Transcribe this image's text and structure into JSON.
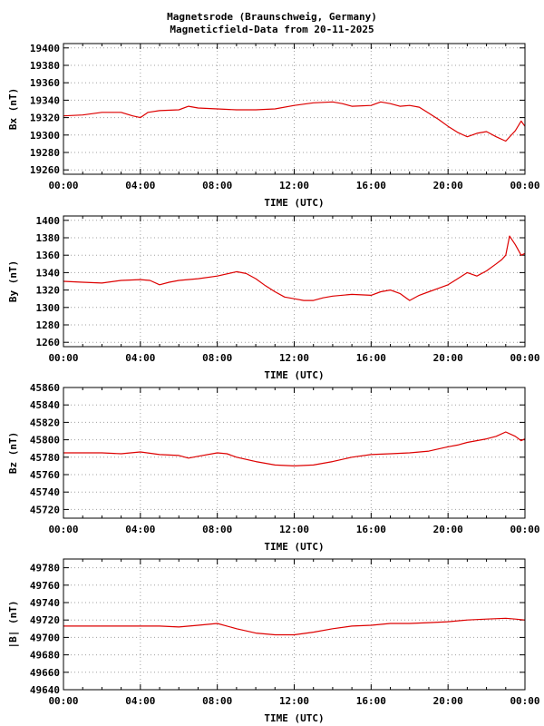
{
  "page": {
    "title_line1": "Magnetsrode (Braunschweig, Germany)",
    "title_line2": "Magneticfield-Data from 20-11-2025"
  },
  "colors": {
    "series": "#dd0000",
    "grid": "#a0a0a0",
    "axis": "#000000",
    "background": "#ffffff"
  },
  "chart_data": [
    {
      "type": "line",
      "ylabel": "Bx (nT)",
      "xlabel": "TIME (UTC)",
      "xlim": [
        0,
        24
      ],
      "xticks": [
        "00:00",
        "04:00",
        "08:00",
        "12:00",
        "16:00",
        "20:00",
        "00:00"
      ],
      "ylim": [
        19255,
        19405
      ],
      "yticks": [
        19260,
        19280,
        19300,
        19320,
        19340,
        19360,
        19380,
        19400
      ],
      "grid": true,
      "series": [
        {
          "points": [
            [
              0,
              19322
            ],
            [
              1,
              19323
            ],
            [
              2,
              19326
            ],
            [
              3,
              19326
            ],
            [
              3.6,
              19322
            ],
            [
              4,
              19320
            ],
            [
              4.4,
              19326
            ],
            [
              5,
              19328
            ],
            [
              6,
              19329
            ],
            [
              6.5,
              19333
            ],
            [
              7,
              19331
            ],
            [
              8,
              19330
            ],
            [
              9,
              19329
            ],
            [
              10,
              19329
            ],
            [
              11,
              19330
            ],
            [
              12,
              19334
            ],
            [
              13,
              19337
            ],
            [
              14,
              19338
            ],
            [
              14.5,
              19336
            ],
            [
              15,
              19333
            ],
            [
              16,
              19334
            ],
            [
              16.5,
              19338
            ],
            [
              17,
              19336
            ],
            [
              17.5,
              19333
            ],
            [
              18,
              19334
            ],
            [
              18.5,
              19332
            ],
            [
              19,
              19325
            ],
            [
              19.5,
              19318
            ],
            [
              20,
              19310
            ],
            [
              20.5,
              19303
            ],
            [
              21,
              19298
            ],
            [
              21.5,
              19302
            ],
            [
              22,
              19304
            ],
            [
              22.5,
              19298
            ],
            [
              23,
              19293
            ],
            [
              23.5,
              19305
            ],
            [
              23.8,
              19316
            ],
            [
              24,
              19310
            ]
          ]
        }
      ]
    },
    {
      "type": "line",
      "ylabel": "By (nT)",
      "xlabel": "TIME (UTC)",
      "xlim": [
        0,
        24
      ],
      "xticks": [
        "00:00",
        "04:00",
        "08:00",
        "12:00",
        "16:00",
        "20:00",
        "00:00"
      ],
      "ylim": [
        1255,
        1405
      ],
      "yticks": [
        1260,
        1280,
        1300,
        1320,
        1340,
        1360,
        1380,
        1400
      ],
      "grid": true,
      "series": [
        {
          "points": [
            [
              0,
              1330
            ],
            [
              1,
              1329
            ],
            [
              2,
              1328
            ],
            [
              3,
              1331
            ],
            [
              4,
              1332
            ],
            [
              4.5,
              1331
            ],
            [
              5,
              1326
            ],
            [
              5.5,
              1329
            ],
            [
              6,
              1331
            ],
            [
              7,
              1333
            ],
            [
              8,
              1336
            ],
            [
              9,
              1341
            ],
            [
              9.5,
              1339
            ],
            [
              10,
              1333
            ],
            [
              10.5,
              1325
            ],
            [
              11,
              1318
            ],
            [
              11.5,
              1312
            ],
            [
              12,
              1310
            ],
            [
              12.5,
              1308
            ],
            [
              13,
              1308
            ],
            [
              13.5,
              1311
            ],
            [
              14,
              1313
            ],
            [
              15,
              1315
            ],
            [
              16,
              1314
            ],
            [
              16.5,
              1318
            ],
            [
              17,
              1320
            ],
            [
              17.5,
              1316
            ],
            [
              18,
              1308
            ],
            [
              18.5,
              1314
            ],
            [
              19,
              1318
            ],
            [
              19.5,
              1322
            ],
            [
              20,
              1326
            ],
            [
              20.5,
              1333
            ],
            [
              21,
              1340
            ],
            [
              21.5,
              1336
            ],
            [
              22,
              1342
            ],
            [
              22.5,
              1350
            ],
            [
              22.8,
              1355
            ],
            [
              23,
              1360
            ],
            [
              23.2,
              1382
            ],
            [
              23.5,
              1372
            ],
            [
              23.8,
              1360
            ],
            [
              24,
              1362
            ]
          ]
        }
      ]
    },
    {
      "type": "line",
      "ylabel": "Bz (nT)",
      "xlabel": "TIME (UTC)",
      "xlim": [
        0,
        24
      ],
      "xticks": [
        "00:00",
        "04:00",
        "08:00",
        "12:00",
        "16:00",
        "20:00",
        "00:00"
      ],
      "ylim": [
        45710,
        45860
      ],
      "yticks": [
        45720,
        45740,
        45760,
        45780,
        45800,
        45820,
        45840,
        45860
      ],
      "grid": true,
      "series": [
        {
          "points": [
            [
              0,
              45785
            ],
            [
              1,
              45785
            ],
            [
              2,
              45785
            ],
            [
              3,
              45784
            ],
            [
              4,
              45786
            ],
            [
              5,
              45783
            ],
            [
              6,
              45782
            ],
            [
              6.5,
              45779
            ],
            [
              7,
              45781
            ],
            [
              8,
              45785
            ],
            [
              8.5,
              45784
            ],
            [
              9,
              45780
            ],
            [
              10,
              45775
            ],
            [
              11,
              45771
            ],
            [
              12,
              45770
            ],
            [
              13,
              45771
            ],
            [
              14,
              45775
            ],
            [
              15,
              45780
            ],
            [
              16,
              45783
            ],
            [
              17,
              45784
            ],
            [
              18,
              45785
            ],
            [
              19,
              45787
            ],
            [
              20,
              45792
            ],
            [
              20.5,
              45794
            ],
            [
              21,
              45797
            ],
            [
              22,
              45801
            ],
            [
              22.5,
              45804
            ],
            [
              23,
              45809
            ],
            [
              23.5,
              45804
            ],
            [
              23.8,
              45799
            ],
            [
              24,
              45801
            ]
          ]
        }
      ]
    },
    {
      "type": "line",
      "ylabel": "|B| (nT)",
      "xlabel": "TIME (UTC)",
      "xlim": [
        0,
        24
      ],
      "xticks": [
        "00:00",
        "04:00",
        "08:00",
        "12:00",
        "16:00",
        "20:00",
        "00:00"
      ],
      "ylim": [
        49640,
        49790
      ],
      "yticks": [
        49640,
        49660,
        49680,
        49700,
        49720,
        49740,
        49760,
        49780
      ],
      "grid": true,
      "series": [
        {
          "points": [
            [
              0,
              49713
            ],
            [
              1,
              49713
            ],
            [
              2,
              49713
            ],
            [
              3,
              49713
            ],
            [
              4,
              49713
            ],
            [
              5,
              49713
            ],
            [
              6,
              49712
            ],
            [
              7,
              49714
            ],
            [
              8,
              49716
            ],
            [
              9,
              49710
            ],
            [
              10,
              49705
            ],
            [
              11,
              49703
            ],
            [
              12,
              49703
            ],
            [
              13,
              49706
            ],
            [
              14,
              49710
            ],
            [
              15,
              49713
            ],
            [
              16,
              49714
            ],
            [
              17,
              49716
            ],
            [
              18,
              49716
            ],
            [
              19,
              49717
            ],
            [
              20,
              49718
            ],
            [
              21,
              49720
            ],
            [
              22,
              49721
            ],
            [
              23,
              49722
            ],
            [
              23.5,
              49721
            ],
            [
              24,
              49720
            ]
          ]
        }
      ]
    }
  ]
}
